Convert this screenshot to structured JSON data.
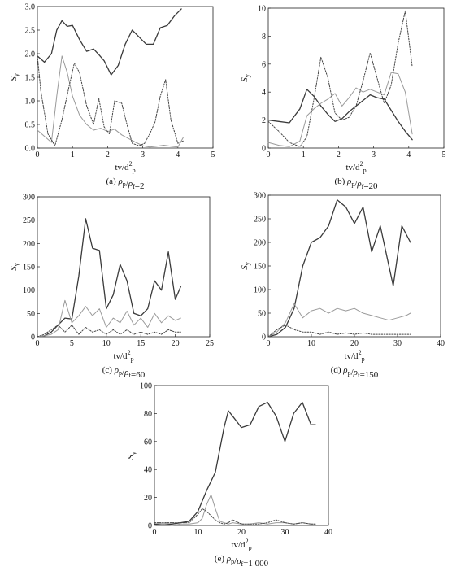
{
  "chart_data": [
    {
      "type": "line",
      "caption": "(a) ρ_p/ρ_f=2",
      "xlabel": "tv/d_p^2",
      "ylabel": "S_y",
      "xlim": [
        0,
        5
      ],
      "ylim": [
        0,
        3.0
      ],
      "xticks": [
        "0",
        "1",
        "2",
        "3",
        "4",
        "5"
      ],
      "yticks": [
        "0.0",
        "0.5",
        "1.0",
        "1.5",
        "2.0",
        "2.5",
        "3.0"
      ],
      "series": [
        {
          "style": "solid-dark",
          "x": [
            0,
            0.2,
            0.4,
            0.55,
            0.7,
            0.85,
            1.0,
            1.2,
            1.4,
            1.6,
            1.75,
            1.9,
            2.1,
            2.3,
            2.5,
            2.7,
            2.9,
            3.1,
            3.3,
            3.5,
            3.7,
            3.9,
            4.1
          ],
          "y": [
            1.95,
            1.82,
            2.0,
            2.5,
            2.7,
            2.58,
            2.6,
            2.3,
            2.05,
            2.1,
            1.98,
            1.85,
            1.55,
            1.75,
            2.2,
            2.5,
            2.35,
            2.2,
            2.2,
            2.55,
            2.6,
            2.8,
            2.95
          ]
        },
        {
          "style": "solid-light",
          "x": [
            0,
            0.2,
            0.4,
            0.55,
            0.7,
            0.85,
            1.0,
            1.2,
            1.4,
            1.6,
            1.8,
            2.0,
            2.2,
            2.4,
            2.6,
            2.8,
            3.0,
            3.2,
            3.4,
            3.6,
            3.8,
            4.0,
            4.15
          ],
          "y": [
            0.38,
            0.25,
            0.12,
            1.1,
            1.95,
            1.6,
            1.1,
            0.7,
            0.5,
            0.38,
            0.42,
            0.35,
            0.4,
            0.28,
            0.2,
            0.12,
            0.05,
            0.02,
            0.04,
            0.06,
            0.04,
            0.02,
            0.22
          ]
        },
        {
          "style": "dotted",
          "x": [
            0,
            0.1,
            0.3,
            0.5,
            0.7,
            0.9,
            1.05,
            1.2,
            1.4,
            1.6,
            1.75,
            1.9,
            2.05,
            2.2,
            2.4,
            2.55,
            2.7,
            2.9,
            3.05,
            3.2,
            3.35,
            3.5,
            3.65,
            3.8,
            4.0,
            4.15
          ],
          "y": [
            1.95,
            1.2,
            0.3,
            0.05,
            0.6,
            1.3,
            1.8,
            1.6,
            0.9,
            0.5,
            1.05,
            0.45,
            0.3,
            1.0,
            0.95,
            0.5,
            0.1,
            0.05,
            0.1,
            0.3,
            0.55,
            1.1,
            1.45,
            0.6,
            0.1,
            0.15
          ]
        }
      ]
    },
    {
      "type": "line",
      "caption": "(b) ρ_p/ρ_f=20",
      "xlabel": "tv/d_p^2",
      "ylabel": "S_y",
      "xlim": [
        0,
        5
      ],
      "ylim": [
        0,
        10
      ],
      "xticks": [
        "0",
        "1",
        "2",
        "3",
        "4",
        "5"
      ],
      "yticks": [
        "0",
        "2",
        "4",
        "6",
        "8",
        "10"
      ],
      "series": [
        {
          "style": "solid-dark",
          "x": [
            0,
            0.3,
            0.6,
            0.9,
            1.1,
            1.3,
            1.5,
            1.7,
            1.9,
            2.1,
            2.3,
            2.5,
            2.7,
            2.9,
            3.1,
            3.3,
            3.5,
            3.7,
            3.9,
            4.1
          ],
          "y": [
            2.0,
            1.9,
            1.8,
            2.8,
            4.2,
            3.7,
            3.0,
            2.4,
            1.9,
            2.1,
            2.6,
            3.0,
            3.4,
            3.8,
            3.6,
            3.5,
            2.7,
            1.9,
            1.2,
            0.6
          ]
        },
        {
          "style": "solid-light",
          "x": [
            0,
            0.3,
            0.6,
            0.9,
            1.1,
            1.3,
            1.5,
            1.7,
            1.9,
            2.1,
            2.3,
            2.5,
            2.7,
            2.9,
            3.1,
            3.3,
            3.5,
            3.7,
            3.9,
            4.1
          ],
          "y": [
            0.4,
            0.2,
            0.1,
            0.5,
            2.3,
            2.8,
            3.2,
            3.5,
            3.9,
            3.0,
            3.6,
            4.3,
            4.0,
            4.2,
            4.0,
            3.8,
            5.4,
            5.3,
            4.0,
            1.0
          ]
        },
        {
          "style": "dotted",
          "x": [
            0,
            0.3,
            0.6,
            0.9,
            1.1,
            1.3,
            1.5,
            1.7,
            1.9,
            2.1,
            2.3,
            2.5,
            2.7,
            2.9,
            3.1,
            3.3,
            3.5,
            3.7,
            3.9,
            4.1
          ],
          "y": [
            1.9,
            1.2,
            0.4,
            0.1,
            0.8,
            3.5,
            6.5,
            5.0,
            2.5,
            2.0,
            2.2,
            3.0,
            4.8,
            6.8,
            5.0,
            3.2,
            4.5,
            7.5,
            9.8,
            5.8
          ]
        }
      ]
    },
    {
      "type": "line",
      "caption": "(c) ρ_p/ρ_f=60",
      "xlabel": "tv/d_p^2",
      "ylabel": "S_y",
      "xlim": [
        0,
        25
      ],
      "ylim": [
        0,
        300
      ],
      "xticks": [
        "0",
        "5",
        "10",
        "15",
        "20",
        "25"
      ],
      "yticks": [
        "0",
        "50",
        "100",
        "150",
        "200",
        "250",
        "300"
      ],
      "series": [
        {
          "style": "solid-dark",
          "x": [
            0,
            1,
            2,
            3,
            4,
            5,
            6,
            7,
            8,
            9,
            10,
            11,
            12,
            13,
            14,
            15,
            16,
            17,
            18,
            19,
            20,
            20.8
          ],
          "y": [
            0,
            2,
            10,
            25,
            40,
            38,
            130,
            253,
            190,
            185,
            60,
            90,
            155,
            120,
            50,
            45,
            60,
            120,
            100,
            182,
            80,
            108
          ]
        },
        {
          "style": "solid-light",
          "x": [
            0,
            1,
            2,
            3,
            4,
            5,
            6,
            7,
            8,
            9,
            10,
            11,
            12,
            13,
            14,
            15,
            16,
            17,
            18,
            19,
            20,
            20.8
          ],
          "y": [
            0,
            2,
            5,
            15,
            78,
            30,
            45,
            65,
            45,
            60,
            20,
            40,
            30,
            55,
            25,
            40,
            20,
            50,
            30,
            45,
            35,
            40
          ]
        },
        {
          "style": "dotted",
          "x": [
            0,
            1,
            2,
            3,
            4,
            5,
            6,
            7,
            8,
            9,
            10,
            11,
            12,
            13,
            14,
            15,
            16,
            17,
            18,
            19,
            20,
            20.8
          ],
          "y": [
            0,
            5,
            15,
            25,
            10,
            25,
            5,
            20,
            10,
            15,
            5,
            15,
            5,
            15,
            5,
            10,
            5,
            10,
            5,
            15,
            10,
            10
          ]
        }
      ]
    },
    {
      "type": "line",
      "caption": "(d) ρ_p/ρ_f=150",
      "xlabel": "tv/d_p^2",
      "ylabel": "S_y",
      "xlim": [
        0,
        40
      ],
      "ylim": [
        0,
        300
      ],
      "xticks": [
        "0",
        "10",
        "20",
        "30",
        "40"
      ],
      "yticks": [
        "0",
        "50",
        "100",
        "150",
        "200",
        "250",
        "300"
      ],
      "series": [
        {
          "style": "solid-dark",
          "x": [
            0,
            2,
            4,
            6,
            8,
            10,
            12,
            14,
            16,
            18,
            20,
            22,
            24,
            26,
            28,
            29,
            31,
            33
          ],
          "y": [
            0,
            5,
            20,
            60,
            150,
            200,
            210,
            235,
            290,
            275,
            240,
            275,
            180,
            235,
            150,
            108,
            235,
            200
          ]
        },
        {
          "style": "solid-light",
          "x": [
            0,
            2,
            4,
            6,
            8,
            10,
            12,
            14,
            16,
            18,
            20,
            22,
            24,
            26,
            28,
            30,
            32,
            33
          ],
          "y": [
            0,
            10,
            30,
            70,
            40,
            55,
            60,
            50,
            60,
            55,
            60,
            50,
            45,
            40,
            35,
            40,
            45,
            50
          ]
        },
        {
          "style": "dotted",
          "x": [
            0,
            2,
            4,
            6,
            8,
            10,
            12,
            14,
            16,
            18,
            20,
            22,
            24,
            26,
            28,
            30,
            32,
            33
          ],
          "y": [
            0,
            15,
            25,
            15,
            10,
            10,
            5,
            10,
            5,
            8,
            5,
            8,
            5,
            5,
            5,
            5,
            5,
            5
          ]
        }
      ]
    },
    {
      "type": "line",
      "caption": "(e) ρ_p/ρ_f=1 000",
      "xlabel": "tv/d_p^2",
      "ylabel": "S_y",
      "xlim": [
        0,
        40
      ],
      "ylim": [
        0,
        100
      ],
      "xticks": [
        "0",
        "10",
        "20",
        "30",
        "40"
      ],
      "yticks": [
        "0",
        "20",
        "40",
        "60",
        "80",
        "100"
      ],
      "series": [
        {
          "style": "solid-dark",
          "x": [
            0,
            2,
            4,
            6,
            8,
            10,
            12,
            14,
            16,
            17,
            18,
            20,
            22,
            24,
            26,
            28,
            30,
            32,
            34,
            36,
            37
          ],
          "y": [
            1,
            1,
            1,
            2,
            3,
            10,
            25,
            38,
            70,
            82,
            78,
            70,
            72,
            85,
            88,
            78,
            60,
            80,
            88,
            72,
            72
          ]
        },
        {
          "style": "solid-light",
          "x": [
            0,
            2,
            4,
            6,
            8,
            10,
            11,
            12,
            13,
            14,
            15,
            16,
            17,
            18,
            20,
            22,
            24,
            26,
            28,
            30,
            32,
            34,
            36,
            37
          ],
          "y": [
            0,
            1,
            0,
            1,
            1,
            2,
            5,
            15,
            22,
            12,
            3,
            2,
            1,
            2,
            1,
            1,
            2,
            1,
            2,
            2,
            1,
            2,
            1,
            1
          ]
        },
        {
          "style": "dotted",
          "x": [
            0,
            2,
            4,
            6,
            8,
            10,
            11,
            12,
            13,
            14,
            15,
            16,
            17,
            18,
            20,
            22,
            24,
            26,
            28,
            30,
            32,
            34,
            36,
            37
          ],
          "y": [
            2,
            2,
            2,
            2,
            2,
            8,
            12,
            10,
            7,
            4,
            2,
            1,
            2,
            4,
            1,
            1,
            1,
            2,
            4,
            2,
            1,
            2,
            1,
            1
          ]
        }
      ]
    }
  ]
}
